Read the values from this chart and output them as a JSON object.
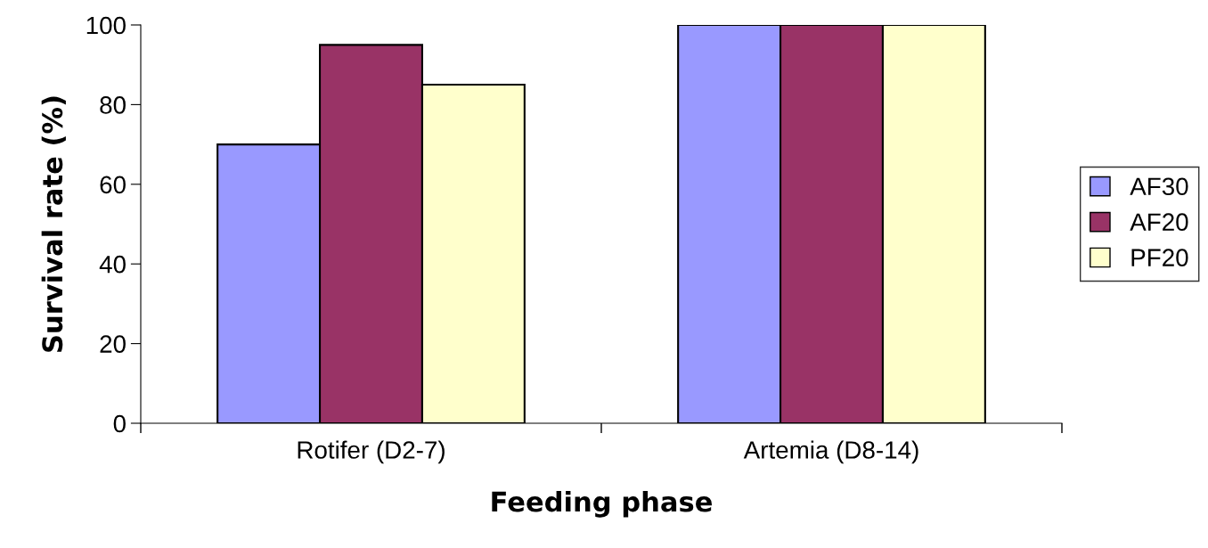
{
  "chart_data": {
    "type": "bar",
    "xlabel": "Feeding phase",
    "ylabel": "Survival rate (%)",
    "categories": [
      "Rotifer (D2-7)",
      "Artemia (D8-14)"
    ],
    "series": [
      {
        "name": "AF30",
        "color": "#9999ff",
        "values": [
          70,
          100
        ]
      },
      {
        "name": "AF20",
        "color": "#993366",
        "values": [
          95,
          100
        ]
      },
      {
        "name": "PF20",
        "color": "#ffffcc",
        "values": [
          85,
          100
        ]
      }
    ],
    "ylim": [
      0,
      100
    ],
    "yticks": [
      0,
      20,
      40,
      60,
      80,
      100
    ],
    "grid": false,
    "legend": "right"
  }
}
